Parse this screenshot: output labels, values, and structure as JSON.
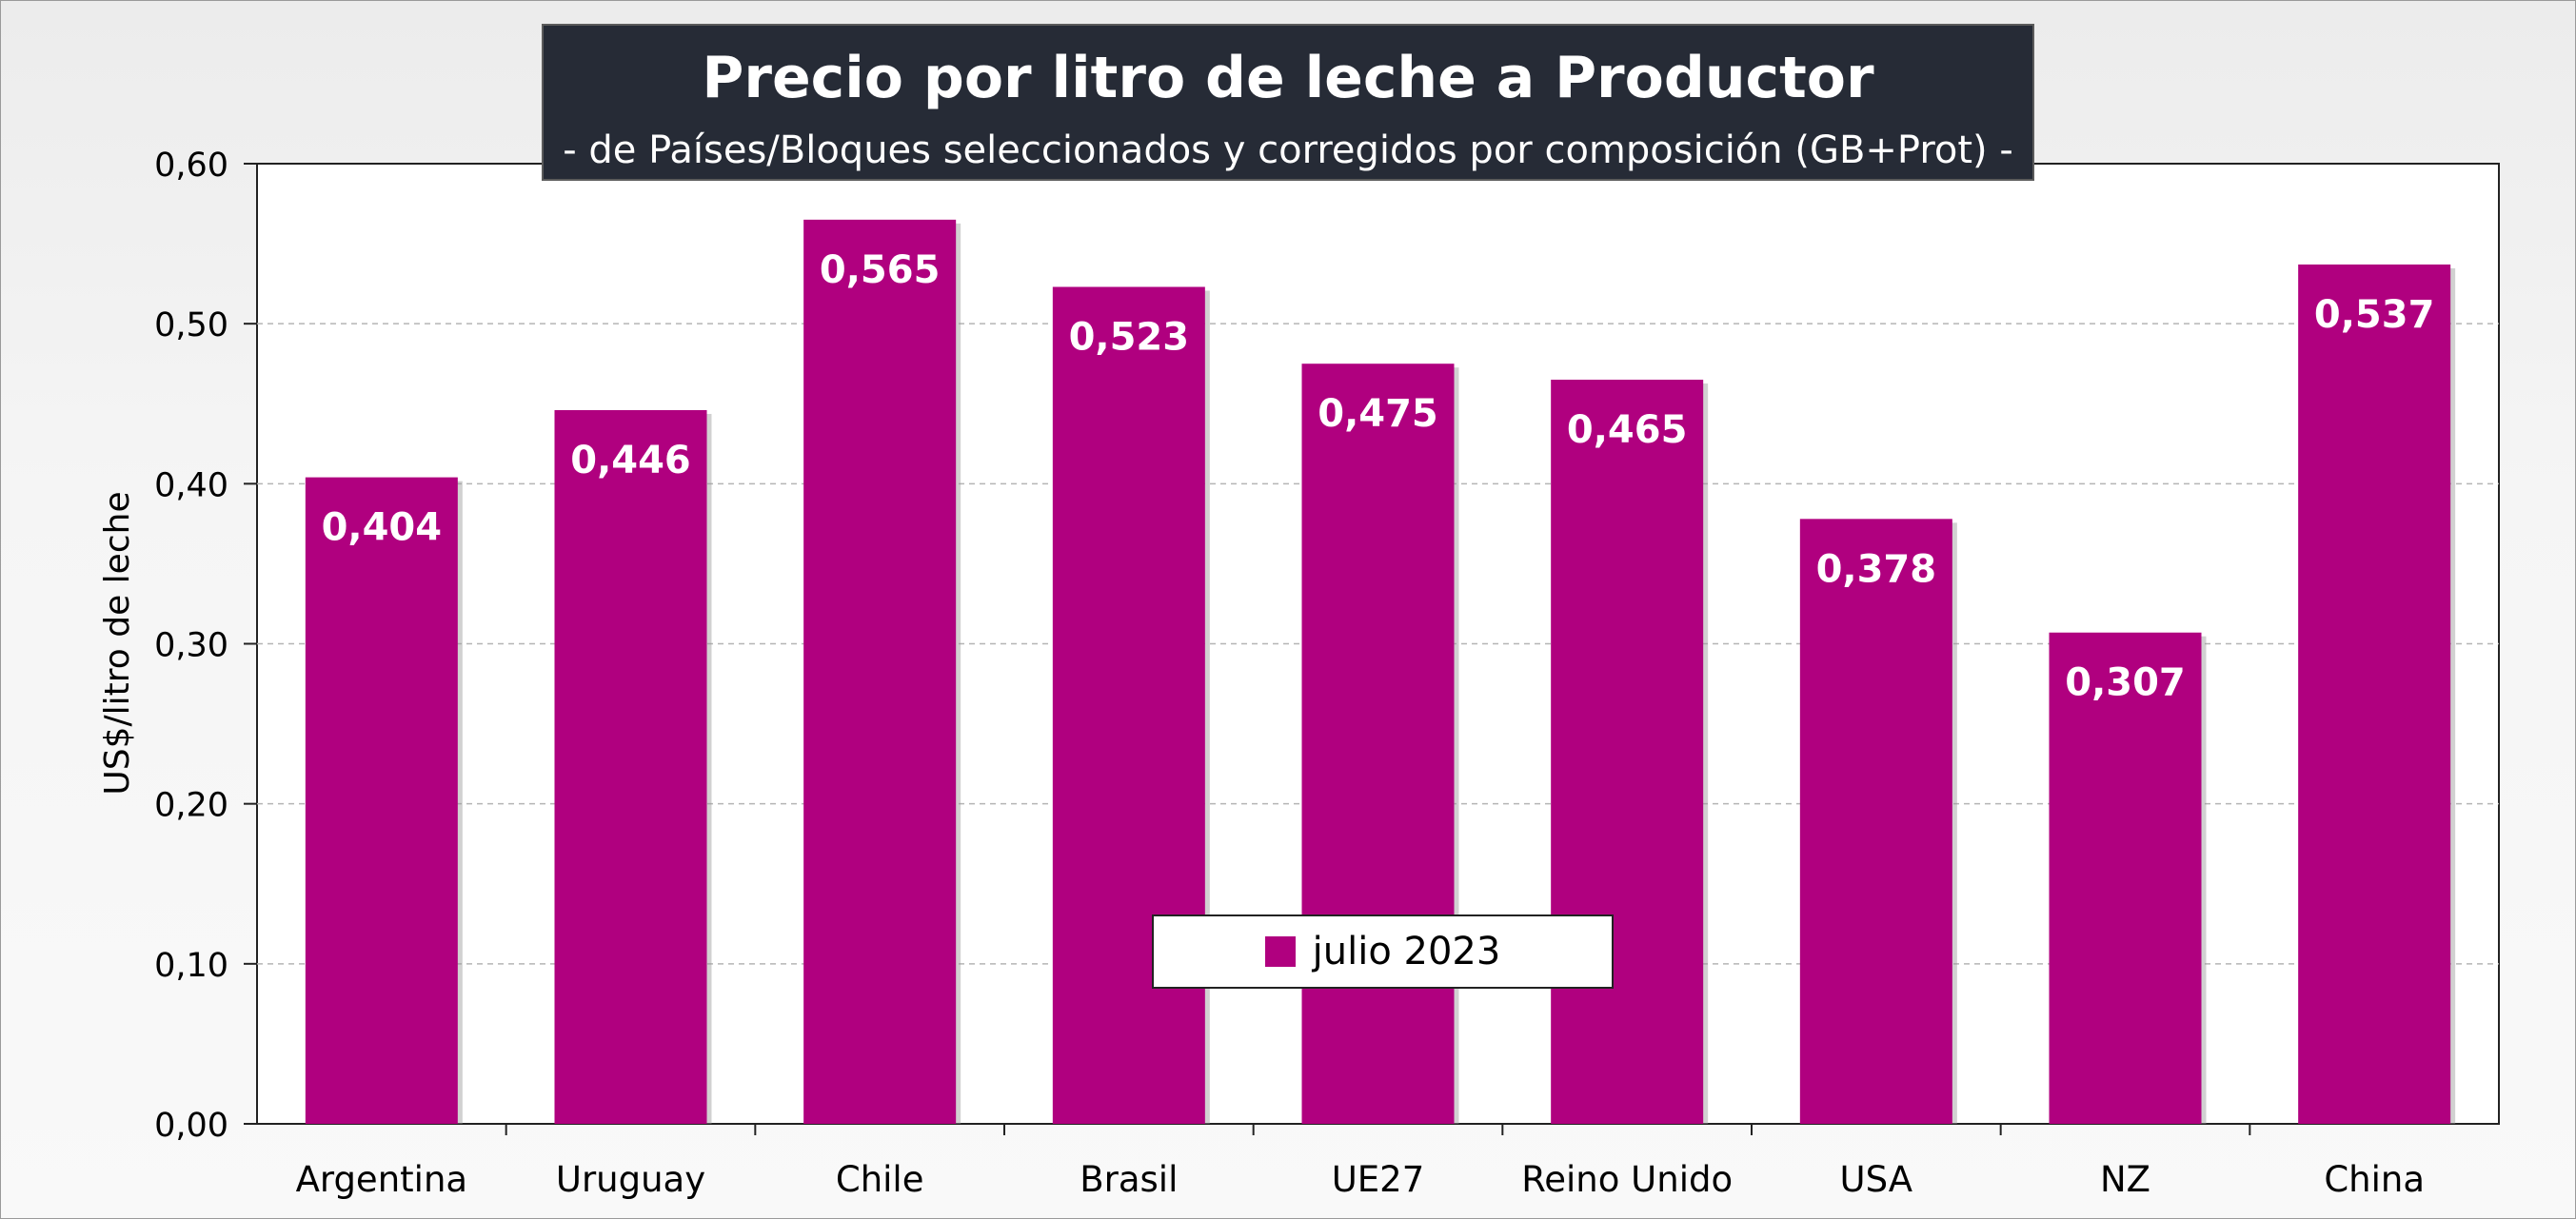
{
  "chart_data": {
    "type": "bar",
    "title": "Precio por litro de leche a Productor",
    "subtitle": "-  de Países/Bloques seleccionados y corregidos por composición (GB+Prot) -",
    "categories": [
      "Argentina",
      "Uruguay",
      "Chile",
      "Brasil",
      "UE27",
      "Reino Unido",
      "USA",
      "NZ",
      "China"
    ],
    "series": [
      {
        "name": "julio 2023",
        "values": [
          0.404,
          0.446,
          0.565,
          0.523,
          0.475,
          0.465,
          0.378,
          0.307,
          0.537
        ],
        "labels": [
          "0,404",
          "0,446",
          "0,565",
          "0,523",
          "0,475",
          "0,465",
          "0,378",
          "0,307",
          "0,537"
        ],
        "color": "#b0007f"
      }
    ],
    "xlabel": "",
    "ylabel": "US$/litro de leche",
    "ylim": [
      0,
      0.6
    ],
    "yticks": [
      0,
      0.1,
      0.2,
      0.3,
      0.4,
      0.5,
      0.6
    ],
    "ytick_labels": [
      "0,00",
      "0,10",
      "0,20",
      "0,30",
      "0,40",
      "0,50",
      "0,60"
    ],
    "grid": true,
    "legend_position": "bottom-center"
  }
}
